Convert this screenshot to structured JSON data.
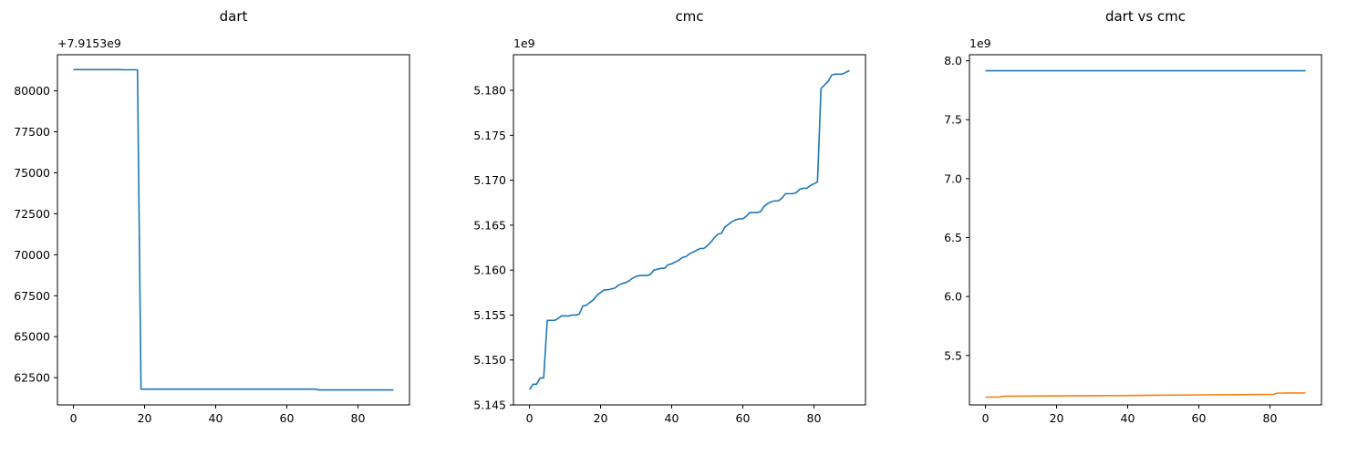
{
  "chart_data": [
    {
      "type": "line",
      "title": "dart",
      "xlabel": "",
      "ylabel": "",
      "y_offset_label": "+7.9153e9",
      "xlim": [
        -4.5,
        94.5
      ],
      "ylim": [
        60837,
        82208
      ],
      "x_ticks": [
        0,
        20,
        40,
        60,
        80
      ],
      "y_ticks": [
        62500,
        65000,
        67500,
        70000,
        72500,
        75000,
        77500,
        80000
      ],
      "grid": false,
      "series": [
        {
          "color": "#1f77b4",
          "points": [
            [
              0,
              81300
            ],
            [
              13,
              81300
            ],
            [
              14,
              81290
            ],
            [
              18,
              81290
            ],
            [
              19,
              61800
            ],
            [
              68,
              61800
            ],
            [
              69,
              61750
            ],
            [
              90,
              61750
            ]
          ]
        }
      ]
    },
    {
      "type": "line",
      "title": "cmc",
      "xlabel": "",
      "ylabel": "",
      "y_offset_label": "1e9",
      "xlim": [
        -4.5,
        94.5
      ],
      "ylim": [
        5.145,
        5.18396
      ],
      "x_ticks": [
        0,
        20,
        40,
        60,
        80
      ],
      "y_ticks": [
        5.145,
        5.15,
        5.155,
        5.16,
        5.165,
        5.17,
        5.175,
        5.18
      ],
      "grid": false,
      "series": [
        {
          "color": "#1f77b4",
          "points": [
            [
              0,
              5.1467
            ],
            [
              1,
              5.1473
            ],
            [
              2,
              5.1473
            ],
            [
              3,
              5.148
            ],
            [
              4,
              5.148
            ],
            [
              5,
              5.1544
            ],
            [
              6,
              5.1544
            ],
            [
              7,
              5.1544
            ],
            [
              8,
              5.1546
            ],
            [
              9,
              5.1549
            ],
            [
              10,
              5.1549
            ],
            [
              11,
              5.1549
            ],
            [
              12,
              5.155
            ],
            [
              13,
              5.155
            ],
            [
              14,
              5.1551
            ],
            [
              15,
              5.156
            ],
            [
              16,
              5.1561
            ],
            [
              17,
              5.1564
            ],
            [
              18,
              5.1567
            ],
            [
              19,
              5.1572
            ],
            [
              20,
              5.1575
            ],
            [
              21,
              5.1578
            ],
            [
              22,
              5.1578
            ],
            [
              23,
              5.1579
            ],
            [
              24,
              5.158
            ],
            [
              25,
              5.1583
            ],
            [
              26,
              5.1585
            ],
            [
              27,
              5.1586
            ],
            [
              28,
              5.1588
            ],
            [
              29,
              5.1591
            ],
            [
              30,
              5.1593
            ],
            [
              31,
              5.1594
            ],
            [
              32,
              5.1594
            ],
            [
              33,
              5.1594
            ],
            [
              34,
              5.1595
            ],
            [
              35,
              5.16
            ],
            [
              36,
              5.1601
            ],
            [
              37,
              5.1602
            ],
            [
              38,
              5.1602
            ],
            [
              39,
              5.1606
            ],
            [
              40,
              5.1607
            ],
            [
              41,
              5.1609
            ],
            [
              42,
              5.1611
            ],
            [
              43,
              5.1614
            ],
            [
              44,
              5.1615
            ],
            [
              45,
              5.1618
            ],
            [
              46,
              5.162
            ],
            [
              47,
              5.1622
            ],
            [
              48,
              5.1624
            ],
            [
              49,
              5.1624
            ],
            [
              50,
              5.1627
            ],
            [
              51,
              5.1631
            ],
            [
              52,
              5.1636
            ],
            [
              53,
              5.164
            ],
            [
              54,
              5.1641
            ],
            [
              55,
              5.1648
            ],
            [
              56,
              5.1651
            ],
            [
              57,
              5.1654
            ],
            [
              58,
              5.1656
            ],
            [
              59,
              5.1657
            ],
            [
              60,
              5.1657
            ],
            [
              61,
              5.166
            ],
            [
              62,
              5.1664
            ],
            [
              63,
              5.1664
            ],
            [
              64,
              5.1664
            ],
            [
              65,
              5.1665
            ],
            [
              66,
              5.1671
            ],
            [
              67,
              5.1674
            ],
            [
              68,
              5.1676
            ],
            [
              69,
              5.1677
            ],
            [
              70,
              5.1677
            ],
            [
              71,
              5.168
            ],
            [
              72,
              5.1685
            ],
            [
              73,
              5.1685
            ],
            [
              74,
              5.1685
            ],
            [
              75,
              5.1686
            ],
            [
              76,
              5.169
            ],
            [
              77,
              5.1691
            ],
            [
              78,
              5.1691
            ],
            [
              79,
              5.1694
            ],
            [
              80,
              5.1696
            ],
            [
              81,
              5.1698
            ],
            [
              82,
              5.1802
            ],
            [
              83,
              5.1806
            ],
            [
              84,
              5.181
            ],
            [
              85,
              5.1817
            ],
            [
              86,
              5.1818
            ],
            [
              87,
              5.1818
            ],
            [
              88,
              5.1818
            ],
            [
              89,
              5.182
            ],
            [
              90,
              5.1822
            ]
          ]
        }
      ]
    },
    {
      "type": "line",
      "title": "dart vs cmc",
      "xlabel": "",
      "ylabel": "",
      "y_offset_label": "1e9",
      "xlim": [
        -4.5,
        94.5
      ],
      "ylim": [
        5.0806,
        8.051
      ],
      "x_ticks": [
        0,
        20,
        40,
        60,
        80
      ],
      "y_ticks": [
        5.5,
        6.0,
        6.5,
        7.0,
        7.5,
        8.0
      ],
      "grid": false,
      "series": [
        {
          "color": "#1f77b4",
          "points": [
            [
              0,
              7.9154
            ],
            [
              90,
              7.9154
            ]
          ]
        },
        {
          "color": "#ff7f0e",
          "points": [
            [
              0,
              5.1467
            ],
            [
              4,
              5.148
            ],
            [
              5,
              5.1544
            ],
            [
              20,
              5.1575
            ],
            [
              40,
              5.1607
            ],
            [
              60,
              5.1657
            ],
            [
              80,
              5.1696
            ],
            [
              81,
              5.1698
            ],
            [
              82,
              5.1802
            ],
            [
              85,
              5.1817
            ],
            [
              90,
              5.1822
            ]
          ]
        }
      ]
    }
  ]
}
